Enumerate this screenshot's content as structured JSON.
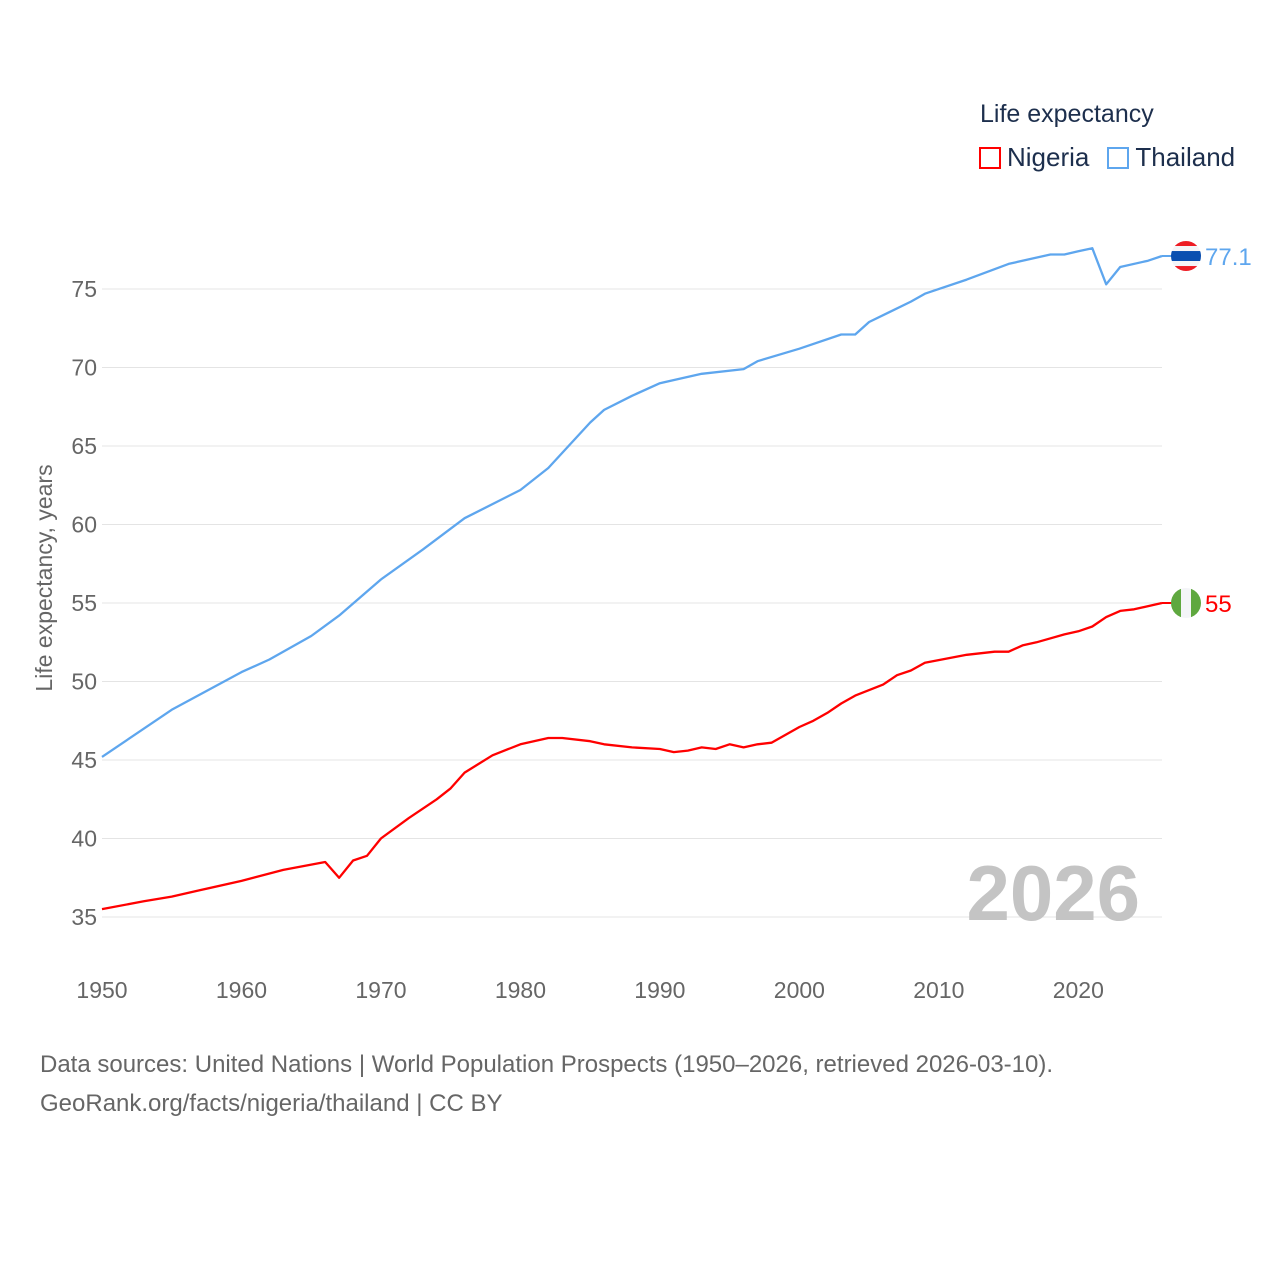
{
  "chart_data": {
    "type": "line",
    "title": "",
    "ylabel": "Life expectancy, years",
    "xlabel": "",
    "xlim": [
      1950,
      2026
    ],
    "ylim": [
      32,
      79
    ],
    "grid": true,
    "x_ticks": [
      "1950",
      "1960",
      "1970",
      "1980",
      "1990",
      "2000",
      "2010",
      "2020"
    ],
    "y_ticks": [
      "35",
      "40",
      "45",
      "50",
      "55",
      "60",
      "65",
      "70",
      "75"
    ],
    "legend_title": "Life expectancy",
    "legend_placement": "top-right",
    "year_watermark": "2026",
    "series": [
      {
        "name": "Nigeria",
        "color": "#ff0000",
        "end_label": "55",
        "x": [
          1950,
          1953,
          1955,
          1957,
          1960,
          1963,
          1966,
          1967,
          1968,
          1969,
          1970,
          1972,
          1974,
          1975,
          1976,
          1978,
          1980,
          1982,
          1983,
          1985,
          1986,
          1988,
          1990,
          1991,
          1992,
          1993,
          1994,
          1995,
          1996,
          1997,
          1998,
          2000,
          2001,
          2002,
          2003,
          2004,
          2006,
          2007,
          2008,
          2009,
          2012,
          2014,
          2015,
          2016,
          2017,
          2019,
          2020,
          2021,
          2022,
          2023,
          2024,
          2026
        ],
        "y": [
          35.5,
          36.0,
          36.3,
          36.7,
          37.3,
          38.0,
          38.5,
          37.5,
          38.6,
          38.9,
          40.0,
          41.3,
          42.5,
          43.2,
          44.2,
          45.3,
          46.0,
          46.4,
          46.4,
          46.2,
          46.0,
          45.8,
          45.7,
          45.5,
          45.6,
          45.8,
          45.7,
          46.0,
          45.8,
          46.0,
          46.1,
          47.1,
          47.5,
          48.0,
          48.6,
          49.1,
          49.8,
          50.4,
          50.7,
          51.2,
          51.7,
          51.9,
          51.9,
          52.3,
          52.5,
          53.0,
          53.2,
          53.5,
          54.1,
          54.5,
          54.6,
          55.0
        ]
      },
      {
        "name": "Thailand",
        "color": "#5ea6ee",
        "end_label": "77.1",
        "x": [
          1950,
          1955,
          1960,
          1962,
          1965,
          1967,
          1970,
          1973,
          1976,
          1980,
          1982,
          1985,
          1986,
          1988,
          1990,
          1993,
          1996,
          1997,
          2000,
          2003,
          2004,
          2005,
          2008,
          2009,
          2012,
          2015,
          2018,
          2019,
          2020,
          2021,
          2022,
          2023,
          2025,
          2026
        ],
        "y": [
          45.2,
          48.2,
          50.6,
          51.4,
          52.9,
          54.2,
          56.5,
          58.4,
          60.4,
          62.2,
          63.6,
          66.5,
          67.3,
          68.2,
          69.0,
          69.6,
          69.9,
          70.4,
          71.2,
          72.1,
          72.1,
          72.9,
          74.2,
          74.7,
          75.6,
          76.6,
          77.2,
          77.2,
          77.4,
          77.6,
          75.3,
          76.4,
          76.8,
          77.1
        ]
      }
    ]
  },
  "footer": {
    "source_line": "Data sources: United Nations | World Population Prospects (1950–2026, retrieved 2026-03-10).",
    "credit_line": "GeoRank.org/facts/nigeria/thailand | CC BY"
  }
}
